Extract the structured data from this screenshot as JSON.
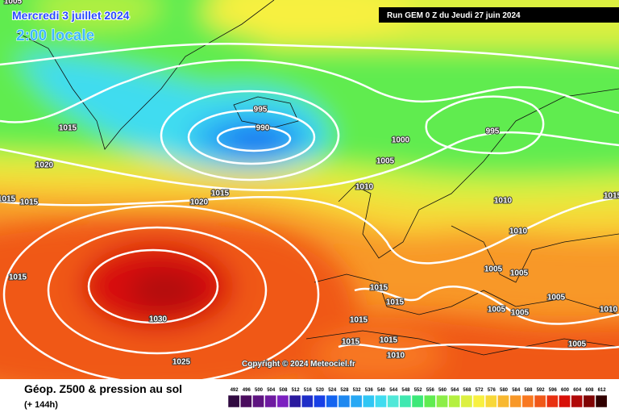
{
  "header": {
    "date": "Mercredi 3 juillet 2024",
    "time": "2:00 locale",
    "run": "Run GEM 0 Z du Jeudi 27 juin 2024"
  },
  "map": {
    "isobar_labels": [
      1005,
      995,
      990,
      1015,
      1000,
      995,
      1020,
      1005,
      1010,
      1015,
      1020,
      1015,
      1015,
      1015,
      1010,
      1010,
      1015,
      1005,
      1005,
      1030,
      1015,
      1015,
      1005,
      1005,
      1005,
      1010,
      1015,
      1015,
      1015,
      1010,
      1025,
      1005
    ],
    "copyright": "Copyright © 2024 Meteociel.fr"
  },
  "footer": {
    "title": "Géop. Z500 & pression au sol",
    "subtitle": "(+ 144h)"
  },
  "legend": {
    "labels": [
      "492",
      "496",
      "500",
      "504",
      "508",
      "512",
      "516",
      "520",
      "524",
      "528",
      "532",
      "536",
      "540",
      "544",
      "548",
      "552",
      "556",
      "560",
      "564",
      "568",
      "572",
      "576",
      "580",
      "584",
      "588",
      "592",
      "596",
      "600",
      "604",
      "608",
      "612"
    ],
    "colors": [
      "#300a40",
      "#4a0c5e",
      "#5e1480",
      "#6e1aa0",
      "#7c20c0",
      "#2a1a9e",
      "#1e2ec8",
      "#1840e6",
      "#1464f0",
      "#1e88f0",
      "#28a8f4",
      "#30c6f4",
      "#40dcf0",
      "#50e8d8",
      "#40e8b0",
      "#3ce878",
      "#60ec50",
      "#8cee48",
      "#b4f040",
      "#dcf040",
      "#f8f040",
      "#f8d838",
      "#f8b830",
      "#f89828",
      "#f87820",
      "#f05818",
      "#e83010",
      "#d81008",
      "#b00808",
      "#800404",
      "#300000"
    ]
  }
}
